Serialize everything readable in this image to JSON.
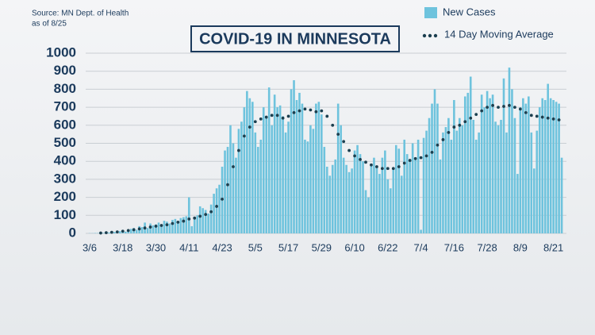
{
  "chart_data": {
    "type": "bar",
    "title": "COVID-19 IN MINNESOTA",
    "source": "Source: MN Dept. of Health",
    "note": "as of 8/25",
    "categories": [
      "3/6",
      null,
      null,
      null,
      null,
      null,
      null,
      null,
      null,
      null,
      null,
      null,
      "3/18",
      null,
      null,
      null,
      null,
      null,
      null,
      null,
      null,
      null,
      null,
      null,
      "3/30",
      null,
      null,
      null,
      null,
      null,
      null,
      null,
      null,
      null,
      null,
      null,
      "4/11",
      null,
      null,
      null,
      null,
      null,
      null,
      null,
      null,
      null,
      null,
      null,
      "4/23",
      null,
      null,
      null,
      null,
      null,
      null,
      null,
      null,
      null,
      null,
      null,
      "5/5",
      null,
      null,
      null,
      null,
      null,
      null,
      null,
      null,
      null,
      null,
      null,
      "5/17",
      null,
      null,
      null,
      null,
      null,
      null,
      null,
      null,
      null,
      null,
      null,
      "5/29",
      null,
      null,
      null,
      null,
      null,
      null,
      null,
      null,
      null,
      null,
      null,
      "6/10",
      null,
      null,
      null,
      null,
      null,
      null,
      null,
      null,
      null,
      null,
      null,
      "6/22",
      null,
      null,
      null,
      null,
      null,
      null,
      null,
      null,
      null,
      null,
      null,
      "7/4",
      null,
      null,
      null,
      null,
      null,
      null,
      null,
      null,
      null,
      null,
      null,
      "7/16",
      null,
      null,
      null,
      null,
      null,
      null,
      null,
      null,
      null,
      null,
      null,
      "7/28",
      null,
      null,
      null,
      null,
      null,
      null,
      null,
      null,
      null,
      null,
      null,
      "8/9",
      null,
      null,
      null,
      null,
      null,
      null,
      null,
      null,
      null,
      null,
      null,
      "8/21",
      null,
      null,
      null
    ],
    "series": [
      {
        "name": "New Cases",
        "type": "bar",
        "color": "#6ec3dd",
        "values": [
          1,
          1,
          2,
          2,
          3,
          3,
          5,
          5,
          8,
          8,
          10,
          12,
          15,
          10,
          20,
          25,
          30,
          20,
          40,
          35,
          60,
          30,
          55,
          45,
          50,
          60,
          40,
          70,
          65,
          55,
          75,
          80,
          60,
          85,
          90,
          95,
          200,
          40,
          90,
          100,
          150,
          140,
          130,
          110,
          160,
          220,
          250,
          270,
          370,
          460,
          480,
          600,
          500,
          420,
          580,
          620,
          700,
          790,
          750,
          730,
          560,
          480,
          520,
          700,
          640,
          810,
          600,
          770,
          700,
          710,
          650,
          560,
          620,
          800,
          850,
          740,
          780,
          720,
          520,
          510,
          600,
          580,
          720,
          730,
          660,
          480,
          370,
          320,
          380,
          410,
          720,
          600,
          420,
          380,
          340,
          360,
          460,
          490,
          440,
          400,
          240,
          200,
          380,
          420,
          370,
          330,
          420,
          460,
          300,
          250,
          360,
          490,
          470,
          320,
          520,
          440,
          400,
          500,
          410,
          520,
          20,
          530,
          570,
          640,
          720,
          800,
          720,
          410,
          560,
          590,
          640,
          520,
          740,
          570,
          640,
          600,
          760,
          780,
          870,
          630,
          520,
          560,
          770,
          700,
          790,
          750,
          770,
          620,
          600,
          630,
          860,
          560,
          920,
          800,
          640,
          330,
          700,
          750,
          720,
          760,
          560,
          360,
          570,
          700,
          750,
          740,
          830,
          750,
          740,
          730,
          720,
          420
        ]
      },
      {
        "name": "14 Day Moving Average",
        "type": "line",
        "color": "#1b3f4f",
        "values": [
          null,
          null,
          null,
          null,
          2,
          3,
          4,
          5,
          6,
          7,
          8,
          10,
          12,
          14,
          16,
          18,
          20,
          22,
          25,
          28,
          30,
          33,
          35,
          37,
          40,
          42,
          44,
          46,
          48,
          50,
          55,
          58,
          62,
          65,
          68,
          72,
          80,
          82,
          85,
          88,
          95,
          100,
          105,
          110,
          120,
          135,
          150,
          165,
          190,
          230,
          270,
          320,
          370,
          420,
          460,
          500,
          540,
          570,
          590,
          610,
          620,
          630,
          635,
          640,
          645,
          650,
          655,
          660,
          655,
          650,
          640,
          645,
          650,
          660,
          670,
          675,
          680,
          685,
          690,
          690,
          685,
          680,
          675,
          680,
          680,
          670,
          650,
          620,
          600,
          570,
          550,
          530,
          510,
          480,
          460,
          440,
          430,
          420,
          410,
          400,
          395,
          390,
          380,
          375,
          370,
          365,
          360,
          360,
          360,
          355,
          360,
          365,
          370,
          380,
          390,
          400,
          405,
          410,
          415,
          420,
          420,
          425,
          430,
          440,
          450,
          470,
          490,
          500,
          520,
          540,
          560,
          580,
          590,
          600,
          600,
          610,
          620,
          630,
          640,
          650,
          660,
          670,
          680,
          690,
          700,
          705,
          710,
          705,
          700,
          700,
          705,
          710,
          710,
          705,
          700,
          690,
          690,
          680,
          670,
          660,
          655,
          650,
          650,
          645,
          645,
          640,
          640,
          635,
          635,
          630,
          630,
          630
        ]
      }
    ],
    "ylim": [
      0,
      1000
    ],
    "yticks": [
      0,
      100,
      200,
      300,
      400,
      500,
      600,
      700,
      800,
      900,
      1000
    ],
    "grid": true
  }
}
